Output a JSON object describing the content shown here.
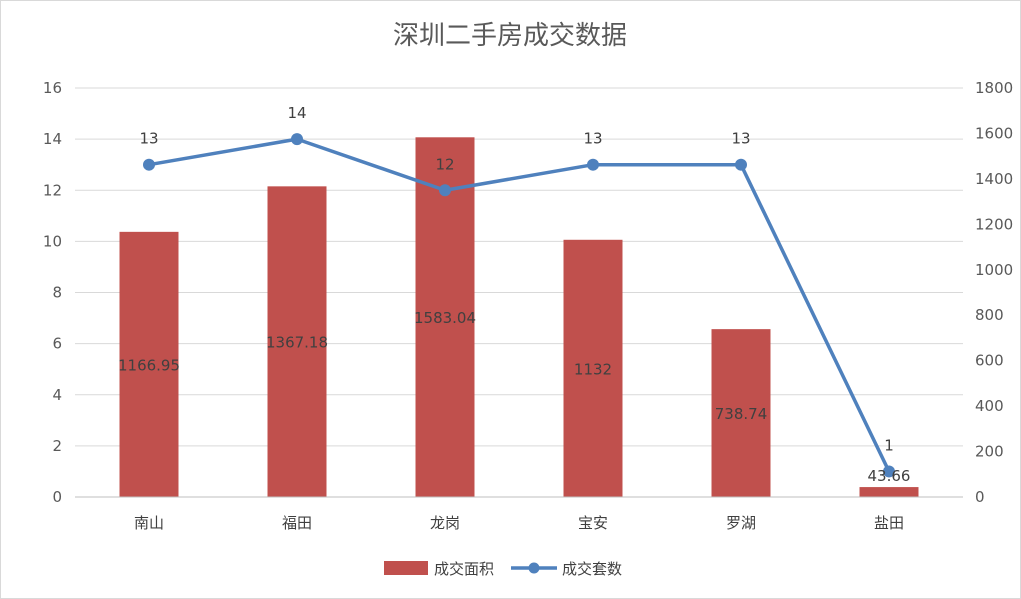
{
  "chart_data": {
    "type": "bar",
    "title": "深圳二手房成交数据",
    "categories": [
      "南山",
      "福田",
      "龙岗",
      "宝安",
      "罗湖",
      "盐田"
    ],
    "series": [
      {
        "name": "成交面积",
        "type": "bar",
        "axis": "right",
        "values": [
          1166.95,
          1367.18,
          1583.04,
          1132,
          738.74,
          43.66
        ],
        "labels": [
          "1166.95",
          "1367.18",
          "1583.04",
          "1132",
          "738.74",
          "43.66"
        ],
        "color": "#c0504d"
      },
      {
        "name": "成交套数",
        "type": "line",
        "axis": "left",
        "values": [
          13,
          14,
          12,
          13,
          13,
          1
        ],
        "labels": [
          "13",
          "14",
          "12",
          "13",
          "13",
          "1"
        ],
        "color": "#4f81bd"
      }
    ],
    "y_left": {
      "min": 0,
      "max": 16,
      "step": 2,
      "ticks": [
        "0",
        "2",
        "4",
        "6",
        "8",
        "10",
        "12",
        "14",
        "16"
      ]
    },
    "y_right": {
      "min": 0,
      "max": 1800,
      "step": 200,
      "ticks": [
        "0",
        "200",
        "400",
        "600",
        "800",
        "1000",
        "1200",
        "1400",
        "1600",
        "1800"
      ]
    },
    "grid": true,
    "legend_position": "bottom"
  }
}
